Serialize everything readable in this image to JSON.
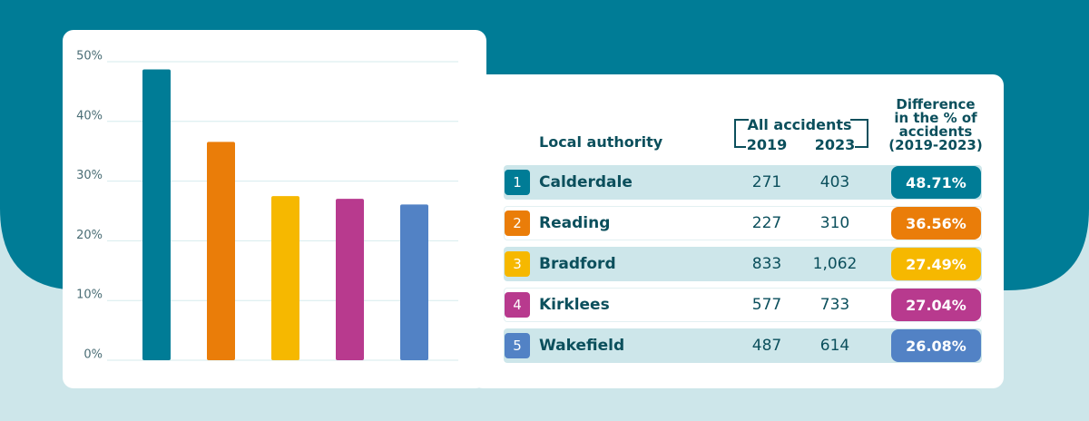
{
  "chart_data": {
    "type": "bar",
    "categories": [
      null,
      null,
      null,
      null,
      null
    ],
    "values": [
      48.71,
      36.56,
      27.49,
      27.04,
      26.08
    ],
    "value_labels": [
      "48.71%",
      "36.56%",
      "27.49%",
      "27.04%",
      "26.08%"
    ],
    "colors": [
      "#007c96",
      "#ea7d09",
      "#f6b800",
      "#b83a8e",
      "#5282c5"
    ],
    "ylim": [
      0,
      50
    ],
    "yticks": [
      {
        "value": 0,
        "label": "0%"
      },
      {
        "value": 10,
        "label": "10%"
      },
      {
        "value": 20,
        "label": "20%"
      },
      {
        "value": 30,
        "label": "30%"
      },
      {
        "value": 40,
        "label": "40%"
      },
      {
        "value": 50,
        "label": "50%"
      }
    ],
    "grid": true
  },
  "table": {
    "header": {
      "authority": "Local authority",
      "group": "All accidents",
      "year1": "2019",
      "year2": "2023",
      "difference": "Difference in the % of accidents (2019-2023)"
    },
    "rows": [
      [
        "1",
        "Calderdale",
        "271",
        "403"
      ],
      [
        "2",
        "Reading",
        "227",
        "310"
      ],
      [
        "3",
        "Bradford",
        "833",
        "1,062"
      ],
      [
        "4",
        "Kirklees",
        "577",
        "733"
      ],
      [
        "5",
        "Wakefield",
        "487",
        "614"
      ]
    ]
  }
}
